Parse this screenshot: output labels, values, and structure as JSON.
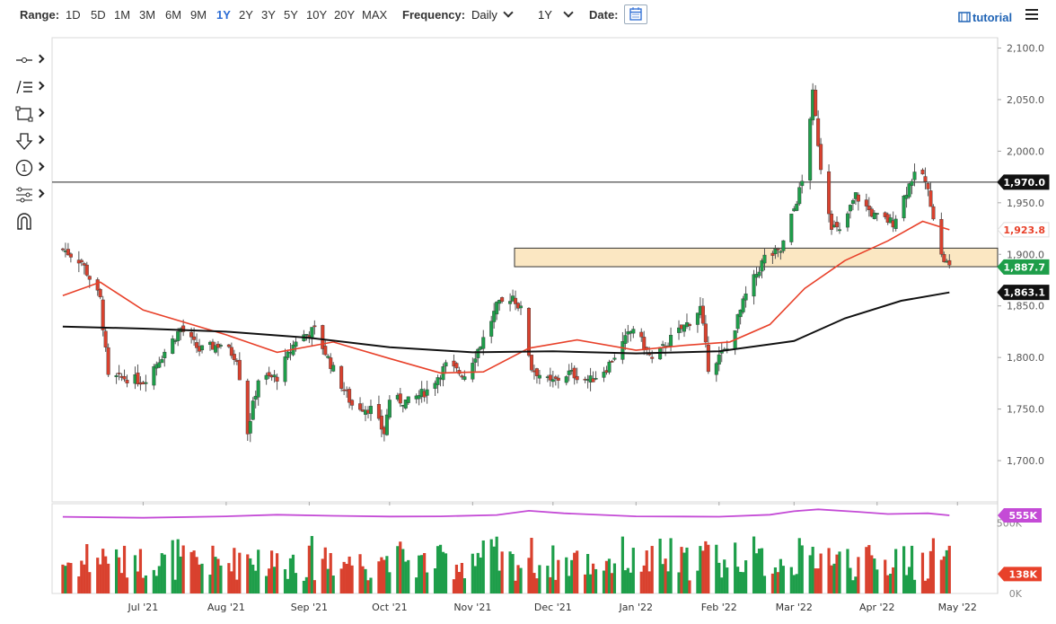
{
  "toolbar": {
    "range_label": "Range:",
    "ranges": [
      "1D",
      "5D",
      "1M",
      "3M",
      "6M",
      "9M",
      "1Y",
      "2Y",
      "3Y",
      "5Y",
      "10Y",
      "20Y",
      "MAX"
    ],
    "active_range": "1Y",
    "frequency_label": "Frequency:",
    "frequency_value": "Daily",
    "period_value": "1Y",
    "date_label": "Date:",
    "tutorial_label": "tutorial"
  },
  "tools": [
    "crosshair-tool",
    "drawing-tools",
    "shape-tool",
    "arrow-tool",
    "annotation-tool",
    "indicator-tool",
    "magnet-tool"
  ],
  "colors": {
    "up": "#1e9e4a",
    "down": "#d9412e",
    "ma_fast": "#e8412a",
    "ma_slow": "#111111",
    "zone": "#fbe7c2",
    "volume_line": "#c44bd6",
    "grid": "#dddddd"
  },
  "chart_data": [
    {
      "type": "candlestick",
      "title": "",
      "x_tick_labels": [
        "Jul '21",
        "Aug '21",
        "Sep '21",
        "Oct '21",
        "Nov '21",
        "Dec '21",
        "Jan '22",
        "Feb '22",
        "Mar '22",
        "Apr '22",
        "May '22"
      ],
      "y_tick_labels": [
        "2,100.0",
        "2,050.0",
        "2,000.0",
        "1,950.0",
        "1,900.0",
        "1,850.0",
        "1,800.0",
        "1,750.0",
        "1,700.0"
      ],
      "y_ticks": [
        2100,
        2050,
        2000,
        1950,
        1900,
        1850,
        1800,
        1750,
        1700
      ],
      "ylim": [
        1660,
        2110
      ],
      "x_range": [
        "2021-05-28",
        "2022-05-16"
      ],
      "price_labels": [
        {
          "text": "1,970.0",
          "value": 1970,
          "color": "#111111",
          "text_color": "#ffffff"
        },
        {
          "text": "1,923.8",
          "value": 1923.8,
          "color": "#ffffff",
          "text_color": "#e8412a"
        },
        {
          "text": "1,887.7",
          "value": 1887.7,
          "color": "#1e9e4a",
          "text_color": "#ffffff"
        },
        {
          "text": "1,863.1",
          "value": 1863.1,
          "color": "#111111",
          "text_color": "#ffffff"
        }
      ],
      "horizontal_line": 1970,
      "zone": [
        1888,
        1906
      ],
      "close_series": [
        {
          "date": "2021-06-01",
          "close": 1905
        },
        {
          "date": "2021-06-08",
          "close": 1893
        },
        {
          "date": "2021-06-15",
          "close": 1856
        },
        {
          "date": "2021-06-18",
          "close": 1780
        },
        {
          "date": "2021-06-25",
          "close": 1780
        },
        {
          "date": "2021-07-01",
          "close": 1777
        },
        {
          "date": "2021-07-08",
          "close": 1802
        },
        {
          "date": "2021-07-15",
          "close": 1828
        },
        {
          "date": "2021-07-22",
          "close": 1807
        },
        {
          "date": "2021-07-30",
          "close": 1813
        },
        {
          "date": "2021-08-05",
          "close": 1800
        },
        {
          "date": "2021-08-09",
          "close": 1728
        },
        {
          "date": "2021-08-13",
          "close": 1779
        },
        {
          "date": "2021-08-20",
          "close": 1781
        },
        {
          "date": "2021-08-27",
          "close": 1817
        },
        {
          "date": "2021-09-03",
          "close": 1827
        },
        {
          "date": "2021-09-10",
          "close": 1788
        },
        {
          "date": "2021-09-17",
          "close": 1754
        },
        {
          "date": "2021-09-24",
          "close": 1750
        },
        {
          "date": "2021-09-29",
          "close": 1727
        },
        {
          "date": "2021-10-01",
          "close": 1760
        },
        {
          "date": "2021-10-08",
          "close": 1757
        },
        {
          "date": "2021-10-15",
          "close": 1768
        },
        {
          "date": "2021-10-22",
          "close": 1792
        },
        {
          "date": "2021-10-29",
          "close": 1783
        },
        {
          "date": "2021-11-05",
          "close": 1818
        },
        {
          "date": "2021-11-10",
          "close": 1849
        },
        {
          "date": "2021-11-16",
          "close": 1860
        },
        {
          "date": "2021-11-19",
          "close": 1846
        },
        {
          "date": "2021-11-23",
          "close": 1790
        },
        {
          "date": "2021-11-30",
          "close": 1775
        },
        {
          "date": "2021-12-07",
          "close": 1785
        },
        {
          "date": "2021-12-15",
          "close": 1778
        },
        {
          "date": "2021-12-21",
          "close": 1790
        },
        {
          "date": "2021-12-31",
          "close": 1829
        },
        {
          "date": "2022-01-07",
          "close": 1797
        },
        {
          "date": "2022-01-14",
          "close": 1818
        },
        {
          "date": "2022-01-21",
          "close": 1835
        },
        {
          "date": "2022-01-25",
          "close": 1848
        },
        {
          "date": "2022-01-28",
          "close": 1791
        },
        {
          "date": "2022-02-04",
          "close": 1808
        },
        {
          "date": "2022-02-11",
          "close": 1860
        },
        {
          "date": "2022-02-18",
          "close": 1897
        },
        {
          "date": "2022-02-24",
          "close": 1903
        },
        {
          "date": "2022-03-01",
          "close": 1944
        },
        {
          "date": "2022-03-04",
          "close": 1970
        },
        {
          "date": "2022-03-08",
          "close": 2055
        },
        {
          "date": "2022-03-11",
          "close": 1985
        },
        {
          "date": "2022-03-15",
          "close": 1929
        },
        {
          "date": "2022-03-18",
          "close": 1921
        },
        {
          "date": "2022-03-24",
          "close": 1957
        },
        {
          "date": "2022-03-31",
          "close": 1937
        },
        {
          "date": "2022-04-07",
          "close": 1931
        },
        {
          "date": "2022-04-14",
          "close": 1974
        },
        {
          "date": "2022-04-18",
          "close": 1978
        },
        {
          "date": "2022-04-21",
          "close": 1951
        },
        {
          "date": "2022-04-25",
          "close": 1898
        },
        {
          "date": "2022-04-28",
          "close": 1887.7
        }
      ],
      "moving_averages": [
        {
          "name": "",
          "color": "#e8412a",
          "last": 1923.8,
          "points": [
            {
              "date": "2021-06-01",
              "value": 1860
            },
            {
              "date": "2021-06-15",
              "value": 1873
            },
            {
              "date": "2021-07-01",
              "value": 1846
            },
            {
              "date": "2021-08-01",
              "value": 1822
            },
            {
              "date": "2021-08-20",
              "value": 1805
            },
            {
              "date": "2021-09-10",
              "value": 1815
            },
            {
              "date": "2021-10-01",
              "value": 1799
            },
            {
              "date": "2021-10-20",
              "value": 1785
            },
            {
              "date": "2021-11-05",
              "value": 1786
            },
            {
              "date": "2021-11-22",
              "value": 1809
            },
            {
              "date": "2021-12-10",
              "value": 1817
            },
            {
              "date": "2022-01-01",
              "value": 1807
            },
            {
              "date": "2022-01-20",
              "value": 1812
            },
            {
              "date": "2022-02-05",
              "value": 1815
            },
            {
              "date": "2022-02-20",
              "value": 1832
            },
            {
              "date": "2022-03-05",
              "value": 1867
            },
            {
              "date": "2022-03-20",
              "value": 1894
            },
            {
              "date": "2022-04-05",
              "value": 1913
            },
            {
              "date": "2022-04-18",
              "value": 1932
            },
            {
              "date": "2022-04-28",
              "value": 1923.8
            }
          ]
        },
        {
          "name": "",
          "color": "#111111",
          "last": 1863.1,
          "points": [
            {
              "date": "2021-06-01",
              "value": 1830
            },
            {
              "date": "2021-07-01",
              "value": 1828
            },
            {
              "date": "2021-08-01",
              "value": 1825
            },
            {
              "date": "2021-09-01",
              "value": 1819
            },
            {
              "date": "2021-10-01",
              "value": 1810
            },
            {
              "date": "2021-11-01",
              "value": 1805
            },
            {
              "date": "2021-12-01",
              "value": 1806
            },
            {
              "date": "2022-01-01",
              "value": 1804
            },
            {
              "date": "2022-02-01",
              "value": 1806
            },
            {
              "date": "2022-03-01",
              "value": 1816
            },
            {
              "date": "2022-03-20",
              "value": 1838
            },
            {
              "date": "2022-04-10",
              "value": 1855
            },
            {
              "date": "2022-04-28",
              "value": 1863.1
            }
          ]
        }
      ]
    },
    {
      "type": "bar",
      "title": "",
      "y_tick_labels": [
        "500K",
        "0K"
      ],
      "ylim": [
        0,
        600000
      ],
      "labels": [
        {
          "text": "555K",
          "value": 555000,
          "color": "#c44bd6"
        },
        {
          "text": "138K",
          "value": 138000,
          "color": "#e8412a"
        }
      ],
      "volume_line": [
        {
          "date": "2021-06-01",
          "value": 545000
        },
        {
          "date": "2021-07-01",
          "value": 538000
        },
        {
          "date": "2021-08-01",
          "value": 548000
        },
        {
          "date": "2021-08-20",
          "value": 560000
        },
        {
          "date": "2021-09-10",
          "value": 552000
        },
        {
          "date": "2021-10-01",
          "value": 547000
        },
        {
          "date": "2021-10-20",
          "value": 548000
        },
        {
          "date": "2021-11-10",
          "value": 558000
        },
        {
          "date": "2021-11-22",
          "value": 588000
        },
        {
          "date": "2021-12-05",
          "value": 570000
        },
        {
          "date": "2022-01-01",
          "value": 548000
        },
        {
          "date": "2022-02-01",
          "value": 546000
        },
        {
          "date": "2022-02-20",
          "value": 560000
        },
        {
          "date": "2022-03-01",
          "value": 585000
        },
        {
          "date": "2022-03-10",
          "value": 598000
        },
        {
          "date": "2022-03-25",
          "value": 580000
        },
        {
          "date": "2022-04-05",
          "value": 565000
        },
        {
          "date": "2022-04-20",
          "value": 570000
        },
        {
          "date": "2022-04-28",
          "value": 555000
        }
      ]
    }
  ]
}
